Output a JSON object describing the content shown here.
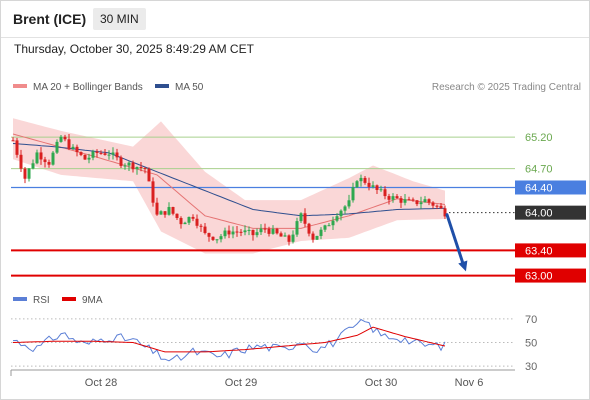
{
  "header": {
    "instrument": "Brent (ICE)",
    "timeframe": "30 MIN",
    "timestamp": "Thursday, October 30, 2025 8:49:29 AM CET"
  },
  "legend": {
    "items": [
      {
        "label": "MA 20 + Bollinger Bands",
        "color": "#f08c8c"
      },
      {
        "label": "MA 50",
        "color": "#2f4f8f"
      }
    ],
    "source": "Research © 2025 Trading Central"
  },
  "rsi_legend": {
    "items": [
      {
        "label": "RSI",
        "color": "#5b7fd6"
      },
      {
        "label": "9MA",
        "color": "#e00000"
      }
    ]
  },
  "colors": {
    "up": "#2fa84f",
    "down": "#d92020",
    "resistance": "#a8d08d",
    "pivot": "#4a7fe0",
    "support": "#e00000",
    "band": "#f9d0d0",
    "ma20": "#e57373",
    "ma50": "#2f4f8f",
    "arrow": "#1f4fa8",
    "current": "#333333"
  },
  "chart_data": [
    {
      "type": "candlestick",
      "name": "price",
      "ylim": [
        62.85,
        65.6
      ],
      "y_ticks": [
        "65.20",
        "64.70",
        "64.40",
        "64.00",
        "63.40",
        "63.00"
      ],
      "x_ticks": [
        "Oct 28",
        "Oct 29",
        "Oct 30",
        "Nov 6"
      ],
      "x_tick_index": [
        22,
        57,
        92,
        114
      ],
      "n_bars": 119,
      "levels": [
        {
          "value": 65.2,
          "label": "65.20",
          "kind": "resistance"
        },
        {
          "value": 64.7,
          "label": "64.70",
          "kind": "resistance"
        },
        {
          "value": 64.4,
          "label": "64.40",
          "kind": "pivot"
        },
        {
          "value": 64.0,
          "label": "64.00",
          "kind": "current"
        },
        {
          "value": 63.4,
          "label": "63.40",
          "kind": "support"
        },
        {
          "value": 63.0,
          "label": "63.00",
          "kind": "support"
        }
      ],
      "forecast": {
        "from": {
          "i": 107,
          "value": 64.0
        },
        "to": {
          "i": 114,
          "value": 63.08
        }
      },
      "anchors": [
        [
          0,
          65.15
        ],
        [
          3,
          64.55
        ],
        [
          6,
          64.95
        ],
        [
          9,
          64.8
        ],
        [
          12,
          65.2
        ],
        [
          15,
          65.0
        ],
        [
          18,
          64.85
        ],
        [
          21,
          64.95
        ],
        [
          24,
          64.95
        ],
        [
          27,
          64.8
        ],
        [
          30,
          64.75
        ],
        [
          33,
          64.7
        ],
        [
          36,
          63.95
        ],
        [
          39,
          64.05
        ],
        [
          42,
          63.85
        ],
        [
          45,
          63.95
        ],
        [
          48,
          63.65
        ],
        [
          51,
          63.6
        ],
        [
          54,
          63.7
        ],
        [
          57,
          63.7
        ],
        [
          60,
          63.65
        ],
        [
          63,
          63.75
        ],
        [
          66,
          63.65
        ],
        [
          69,
          63.55
        ],
        [
          72,
          63.95
        ],
        [
          75,
          63.6
        ],
        [
          78,
          63.75
        ],
        [
          81,
          64.0
        ],
        [
          84,
          64.15
        ],
        [
          86,
          64.55
        ],
        [
          88,
          64.5
        ],
        [
          91,
          64.35
        ],
        [
          94,
          64.25
        ],
        [
          97,
          64.2
        ],
        [
          100,
          64.15
        ],
        [
          103,
          64.2
        ],
        [
          106,
          64.1
        ],
        [
          108,
          64.0
        ]
      ],
      "ma20": [
        [
          0,
          65.25
        ],
        [
          20,
          64.9
        ],
        [
          36,
          64.6
        ],
        [
          48,
          63.95
        ],
        [
          60,
          63.75
        ],
        [
          72,
          63.75
        ],
        [
          84,
          63.95
        ],
        [
          96,
          64.22
        ],
        [
          108,
          64.13
        ]
      ],
      "ma50": [
        [
          0,
          65.1
        ],
        [
          10,
          65.05
        ],
        [
          24,
          64.95
        ],
        [
          36,
          64.65
        ],
        [
          48,
          64.35
        ],
        [
          60,
          64.05
        ],
        [
          72,
          63.95
        ],
        [
          84,
          63.98
        ],
        [
          96,
          64.05
        ],
        [
          108,
          64.07
        ]
      ],
      "band_upper": [
        [
          0,
          65.5
        ],
        [
          12,
          65.3
        ],
        [
          30,
          65.05
        ],
        [
          37,
          65.45
        ],
        [
          48,
          64.65
        ],
        [
          58,
          64.2
        ],
        [
          72,
          64.2
        ],
        [
          84,
          64.55
        ],
        [
          90,
          64.75
        ],
        [
          100,
          64.5
        ],
        [
          108,
          64.35
        ]
      ],
      "band_lower": [
        [
          0,
          64.85
        ],
        [
          12,
          64.6
        ],
        [
          30,
          64.5
        ],
        [
          37,
          63.7
        ],
        [
          48,
          63.35
        ],
        [
          60,
          63.35
        ],
        [
          72,
          63.55
        ],
        [
          84,
          63.6
        ],
        [
          96,
          63.88
        ],
        [
          108,
          63.9
        ]
      ]
    },
    {
      "type": "line",
      "name": "RSI",
      "ylim": [
        25,
        75
      ],
      "y_ticks": [
        "70",
        "50",
        "30"
      ],
      "rsi": [
        [
          0,
          52
        ],
        [
          6,
          45
        ],
        [
          12,
          58
        ],
        [
          18,
          48
        ],
        [
          24,
          55
        ],
        [
          30,
          52
        ],
        [
          36,
          40
        ],
        [
          40,
          34
        ],
        [
          45,
          42
        ],
        [
          52,
          38
        ],
        [
          57,
          44
        ],
        [
          62,
          47
        ],
        [
          68,
          44
        ],
        [
          72,
          52
        ],
        [
          76,
          44
        ],
        [
          80,
          50
        ],
        [
          84,
          60
        ],
        [
          88,
          68
        ],
        [
          92,
          56
        ],
        [
          97,
          54
        ],
        [
          102,
          48
        ],
        [
          108,
          47
        ]
      ],
      "ma9": [
        [
          0,
          50
        ],
        [
          10,
          51
        ],
        [
          20,
          51
        ],
        [
          30,
          50
        ],
        [
          38,
          42
        ],
        [
          48,
          42
        ],
        [
          58,
          44
        ],
        [
          68,
          47
        ],
        [
          78,
          50
        ],
        [
          86,
          56
        ],
        [
          90,
          63
        ],
        [
          98,
          55
        ],
        [
          108,
          47
        ]
      ]
    }
  ]
}
